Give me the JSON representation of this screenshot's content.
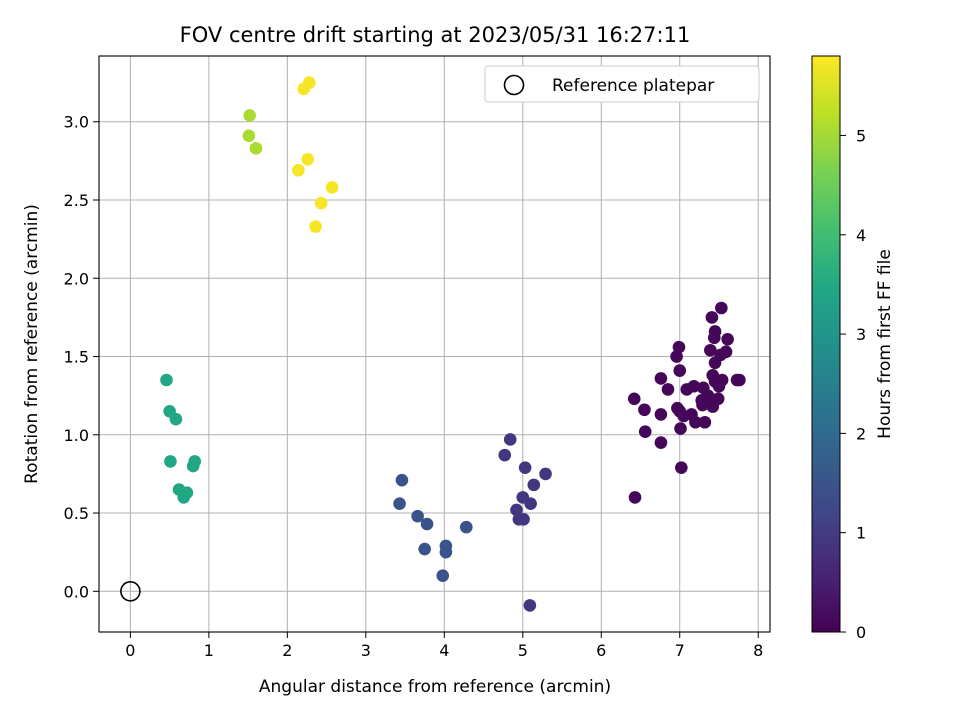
{
  "chart_data": {
    "type": "scatter",
    "title": "FOV centre drift starting at 2023/05/31 16:27:11",
    "xlabel": "Angular distance from reference (arcmin)",
    "ylabel": "Rotation from reference (arcmin)",
    "xlim": [
      -0.4,
      8.15
    ],
    "ylim": [
      -0.26,
      3.42
    ],
    "xticks": [
      0,
      1,
      2,
      3,
      4,
      5,
      6,
      7,
      8
    ],
    "yticks": [
      0.0,
      0.5,
      1.0,
      1.5,
      2.0,
      2.5,
      3.0
    ],
    "grid": true,
    "legend": {
      "position": "top-right",
      "entries": [
        "Reference platepar"
      ]
    },
    "colorbar": {
      "label": "Hours from first FF file",
      "range": [
        0,
        5.8
      ],
      "ticks": [
        0,
        1,
        2,
        3,
        4,
        5
      ],
      "colormap": "viridis"
    },
    "reference_point": {
      "label": "Reference platepar",
      "x": 0.0,
      "y": 0.0
    },
    "series": [
      {
        "hours": 0.1,
        "points": [
          [
            7.53,
            1.81
          ],
          [
            7.41,
            1.75
          ],
          [
            7.45,
            1.66
          ],
          [
            7.61,
            1.61
          ],
          [
            7.44,
            1.62
          ],
          [
            6.99,
            1.56
          ],
          [
            7.39,
            1.54
          ],
          [
            7.59,
            1.53
          ],
          [
            6.96,
            1.5
          ],
          [
            7.52,
            1.51
          ],
          [
            7.45,
            1.46
          ],
          [
            7.0,
            1.41
          ],
          [
            6.76,
            1.36
          ],
          [
            7.42,
            1.38
          ],
          [
            7.73,
            1.35
          ],
          [
            7.76,
            1.35
          ],
          [
            6.85,
            1.29
          ],
          [
            7.09,
            1.29
          ],
          [
            7.18,
            1.31
          ],
          [
            7.3,
            1.3
          ],
          [
            7.45,
            1.34
          ],
          [
            7.5,
            1.31
          ],
          [
            7.54,
            1.35
          ],
          [
            7.36,
            1.25
          ],
          [
            6.42,
            1.23
          ],
          [
            7.28,
            1.22
          ],
          [
            7.49,
            1.23
          ],
          [
            6.55,
            1.16
          ],
          [
            6.97,
            1.17
          ],
          [
            7.0,
            1.15
          ],
          [
            7.29,
            1.19
          ],
          [
            7.42,
            1.18
          ],
          [
            6.76,
            1.13
          ],
          [
            7.05,
            1.12
          ],
          [
            7.15,
            1.13
          ],
          [
            7.2,
            1.08
          ],
          [
            7.32,
            1.08
          ],
          [
            7.01,
            1.04
          ],
          [
            6.56,
            1.02
          ],
          [
            6.76,
            0.95
          ],
          [
            7.02,
            0.79
          ],
          [
            6.43,
            0.6
          ]
        ]
      },
      {
        "hours": 0.9,
        "points": [
          [
            4.84,
            0.97
          ],
          [
            4.77,
            0.87
          ],
          [
            5.29,
            0.75
          ],
          [
            5.03,
            0.79
          ],
          [
            5.14,
            0.68
          ],
          [
            5.0,
            0.6
          ],
          [
            5.1,
            0.56
          ],
          [
            4.92,
            0.52
          ],
          [
            4.95,
            0.46
          ],
          [
            5.01,
            0.46
          ],
          [
            5.09,
            -0.09
          ]
        ]
      },
      {
        "hours": 1.5,
        "points": [
          [
            3.46,
            0.71
          ],
          [
            3.43,
            0.56
          ],
          [
            3.66,
            0.48
          ],
          [
            3.78,
            0.43
          ],
          [
            4.28,
            0.41
          ],
          [
            4.02,
            0.29
          ],
          [
            3.75,
            0.27
          ],
          [
            4.02,
            0.25
          ],
          [
            3.98,
            0.1
          ]
        ]
      },
      {
        "hours": 3.45,
        "points": [
          [
            0.46,
            1.35
          ],
          [
            0.5,
            1.15
          ],
          [
            0.58,
            1.1
          ],
          [
            0.51,
            0.83
          ],
          [
            0.82,
            0.83
          ],
          [
            0.8,
            0.8
          ],
          [
            0.62,
            0.65
          ],
          [
            0.72,
            0.63
          ],
          [
            0.68,
            0.6
          ]
        ]
      },
      {
        "hours": 5.05,
        "points": [
          [
            1.52,
            3.04
          ],
          [
            1.51,
            2.91
          ],
          [
            1.6,
            2.83
          ]
        ]
      },
      {
        "hours": 5.75,
        "points": [
          [
            2.28,
            3.25
          ],
          [
            2.21,
            3.21
          ],
          [
            2.26,
            2.76
          ],
          [
            2.14,
            2.69
          ],
          [
            2.57,
            2.58
          ],
          [
            2.43,
            2.48
          ],
          [
            2.36,
            2.33
          ]
        ]
      }
    ]
  }
}
